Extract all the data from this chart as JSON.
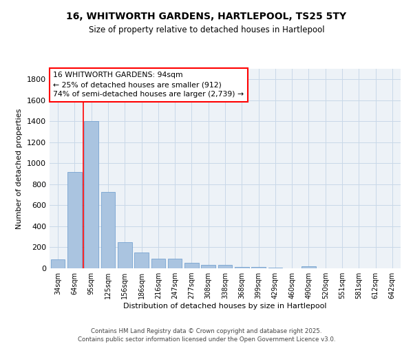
{
  "title": "16, WHITWORTH GARDENS, HARTLEPOOL, TS25 5TY",
  "subtitle": "Size of property relative to detached houses in Hartlepool",
  "xlabel": "Distribution of detached houses by size in Hartlepool",
  "ylabel": "Number of detached properties",
  "categories": [
    "34sqm",
    "64sqm",
    "95sqm",
    "125sqm",
    "156sqm",
    "186sqm",
    "216sqm",
    "247sqm",
    "277sqm",
    "308sqm",
    "338sqm",
    "368sqm",
    "399sqm",
    "429sqm",
    "460sqm",
    "490sqm",
    "520sqm",
    "551sqm",
    "581sqm",
    "612sqm",
    "642sqm"
  ],
  "values": [
    85,
    920,
    1400,
    730,
    250,
    150,
    90,
    90,
    50,
    35,
    30,
    10,
    10,
    5,
    0,
    20,
    0,
    0,
    0,
    0,
    0
  ],
  "bar_color": "#aac4e0",
  "bar_edge_color": "#6699cc",
  "grid_color": "#c8d8e8",
  "annotation_line1": "16 WHITWORTH GARDENS: 94sqm",
  "annotation_line2": "← 25% of detached houses are smaller (912)",
  "annotation_line3": "74% of semi-detached houses are larger (2,739) →",
  "red_line_x": 1.5,
  "ylim": [
    0,
    1900
  ],
  "yticks": [
    0,
    200,
    400,
    600,
    800,
    1000,
    1200,
    1400,
    1600,
    1800
  ],
  "footer_text": "Contains HM Land Registry data © Crown copyright and database right 2025.\nContains public sector information licensed under the Open Government Licence v3.0.",
  "background_color": "#ffffff",
  "plot_bg_color": "#edf2f7"
}
